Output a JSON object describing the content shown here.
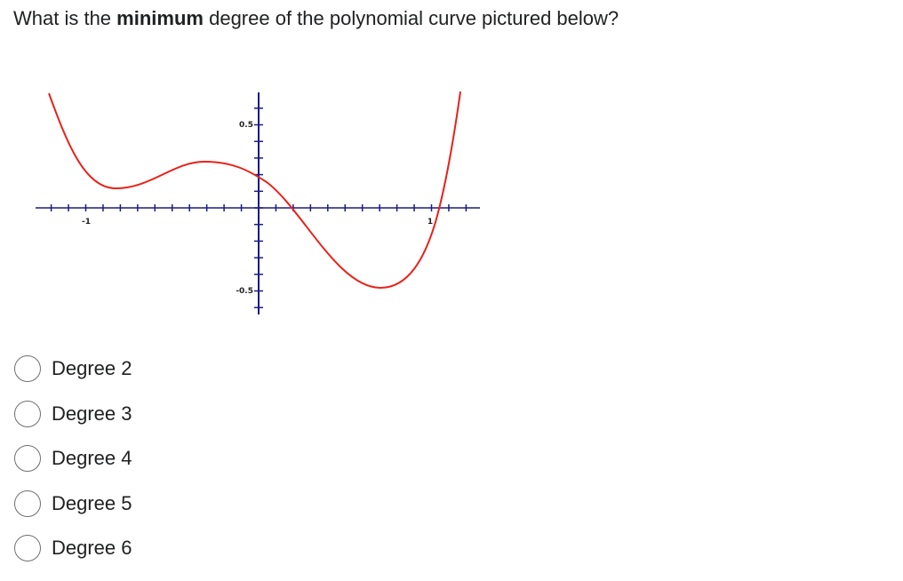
{
  "question": {
    "before": "What is the",
    "emphasis": "minimum",
    "after": "degree of the polynomial curve pictured below?"
  },
  "graph": {
    "x_labels": [
      "-1",
      "1"
    ],
    "y_labels": [
      "0.5",
      "-0.5"
    ]
  },
  "options": [
    "Degree 2",
    "Degree 3",
    "Degree 4",
    "Degree 5",
    "Degree 6"
  ]
}
